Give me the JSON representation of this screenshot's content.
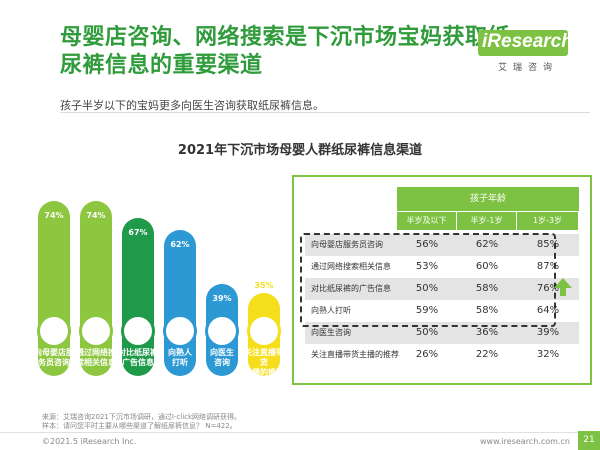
{
  "header": {
    "title": "母婴店咨询、网络搜索是下沉市场宝妈获取纸尿裤信息的重要渠道",
    "subtitle": "孩子半岁以下的宝妈更多向医生咨询获取纸尿裤信息。",
    "logo_main": "iResearch",
    "logo_sub": "艾瑞咨询"
  },
  "colors": {
    "brand_green": "#7dc242",
    "title_green": "#2f9b3b",
    "bar_light_green": "#8dc63f",
    "bar_dark_green": "#1e9a4a",
    "bar_blue": "#2c98d4",
    "bar_yellow": "#f5df1c"
  },
  "chart_data": [
    {
      "type": "bar",
      "title": "2021年下沉市场母婴人群纸尿裤信息渠道",
      "categories": [
        "向母婴店服务员咨询",
        "通过网络搜索相关信息",
        "对比纸尿裤广告信息",
        "向熟人打听",
        "向医生咨询",
        "关注直播带货主播的推荐"
      ],
      "values": [
        74,
        74,
        67,
        62,
        39,
        35
      ],
      "value_labels": [
        "74%",
        "74%",
        "67%",
        "62%",
        "39%",
        "35%"
      ],
      "bar_colors": [
        "#8dc63f",
        "#8dc63f",
        "#1e9a4a",
        "#2c98d4",
        "#2c98d4",
        "#f5df1c"
      ],
      "ylim": [
        0,
        100
      ],
      "xlabel": "",
      "ylabel": ""
    },
    {
      "type": "table",
      "group_header": "孩子年龄",
      "columns": [
        "半岁及以下",
        "半岁-1岁",
        "1岁-3岁"
      ],
      "rows": [
        {
          "label": "向母婴店服务员咨询",
          "values": [
            "56%",
            "62%",
            "85%"
          ]
        },
        {
          "label": "通过网络搜索相关信息",
          "values": [
            "53%",
            "60%",
            "87%"
          ]
        },
        {
          "label": "对比纸尿裤的广告信息",
          "values": [
            "50%",
            "58%",
            "76%"
          ]
        },
        {
          "label": "向熟人打听",
          "values": [
            "59%",
            "58%",
            "64%"
          ]
        },
        {
          "label": "向医生咨询",
          "values": [
            "50%",
            "36%",
            "39%"
          ]
        },
        {
          "label": "关注直播带货主播的推荐",
          "values": [
            "26%",
            "22%",
            "32%"
          ]
        }
      ]
    }
  ],
  "bar_label_lines": [
    [
      "向母婴店服",
      "务员咨询"
    ],
    [
      "通过网络搜",
      "索相关信息"
    ],
    [
      "对比纸尿裤",
      "广告信息"
    ],
    [
      "向熟人",
      "打听"
    ],
    [
      "向医生",
      "咨询"
    ],
    [
      "关注直播带货",
      "主播的推荐"
    ]
  ],
  "footer": {
    "source_line1": "来源：艾瑞咨询2021下沉市场调研，通过I-click网络调研获得。",
    "source_line2": "样本：请问您平时主要从哪些渠道了解纸尿裤信息？ N=422。",
    "copyright": "©2021.5 iResearch Inc.",
    "website": "www.iresearch.com.cn",
    "page": "21"
  }
}
